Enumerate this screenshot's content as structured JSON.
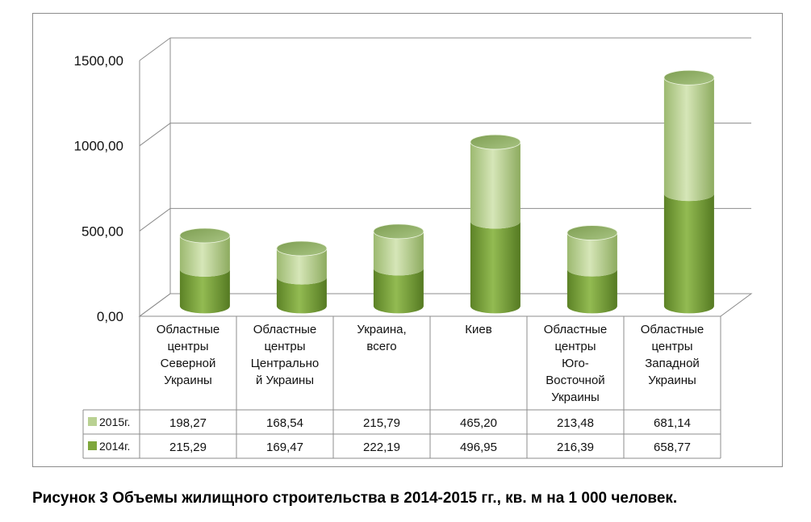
{
  "chart_data": {
    "type": "bar",
    "style": "stacked-3d-cylinder",
    "categories": [
      [
        "Областные",
        "центры",
        "Северной",
        "Украины"
      ],
      [
        "Областные",
        "центры",
        "Центрально",
        "й Украины"
      ],
      [
        "Украина,",
        "всего"
      ],
      [
        "Киев"
      ],
      [
        "Областные",
        "центры",
        "Юго-",
        "Восточной",
        "Украины"
      ],
      [
        "Областные",
        "центры",
        "Западной",
        "Украины"
      ]
    ],
    "series": [
      {
        "name": "2015г.",
        "values": [
          198.27,
          168.54,
          215.79,
          465.2,
          213.48,
          681.14
        ],
        "labels": [
          "198,27",
          "168,54",
          "215,79",
          "465,20",
          "213,48",
          "681,14"
        ],
        "color": "#b9d192"
      },
      {
        "name": "2014г.",
        "values": [
          215.29,
          169.47,
          222.19,
          496.95,
          216.39,
          658.77
        ],
        "labels": [
          "215,29",
          "169,47",
          "222,19",
          "496,95",
          "216,39",
          "658,77"
        ],
        "color": "#7fa73d"
      }
    ],
    "yticks": [
      "0,00",
      "500,00",
      "1000,00",
      "1500,00"
    ],
    "ylim": [
      0,
      1500
    ],
    "grid": true,
    "legend": "data-table"
  },
  "caption": "Рисунок 3 Объемы жилищного строительства в 2014-2015 гг., кв. м на 1 000 человек."
}
